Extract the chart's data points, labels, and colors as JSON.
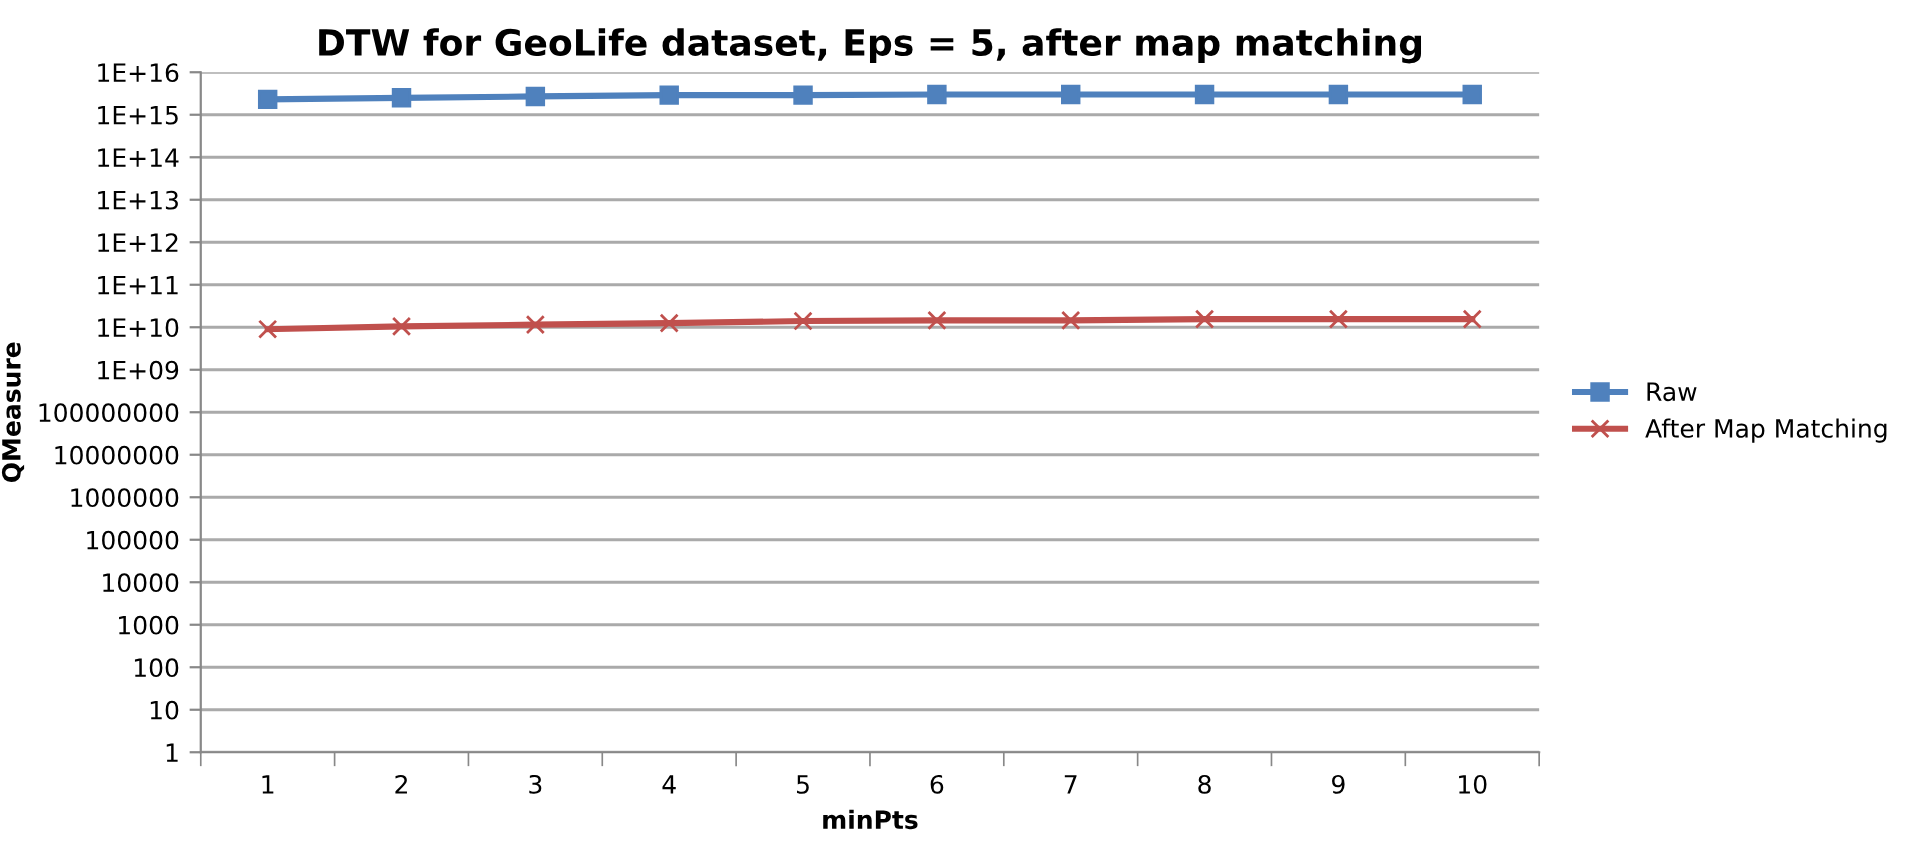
{
  "chart_data": {
    "type": "line",
    "title": "DTW for GeoLife dataset, Eps = 5, after map matching",
    "xlabel": "minPts",
    "ylabel": "QMeasure",
    "categories": [
      "1",
      "2",
      "3",
      "4",
      "5",
      "6",
      "7",
      "8",
      "9",
      "10"
    ],
    "series": [
      {
        "name": "Raw",
        "color": "#4f81bd",
        "marker": "square",
        "values": [
          2300000000000000.0,
          2500000000000000.0,
          2700000000000000.0,
          2900000000000000.0,
          2900000000000000.0,
          3000000000000000.0,
          3000000000000000.0,
          3000000000000000.0,
          3000000000000000.0,
          3000000000000000.0
        ]
      },
      {
        "name": "After Map Matching",
        "color": "#c0504d",
        "marker": "cross",
        "values": [
          9000000000.0,
          10500000000.0,
          11500000000.0,
          12500000000.0,
          14000000000.0,
          14500000000.0,
          14500000000.0,
          15500000000.0,
          15500000000.0,
          15500000000.0
        ]
      }
    ],
    "log": "y",
    "ylim": [
      1,
      1e+16
    ],
    "yticks": [
      1,
      10,
      100,
      1000,
      10000,
      100000,
      1000000,
      10000000,
      100000000,
      {
        "value": 1000000000.0,
        "label": "1E+09"
      },
      {
        "value": 10000000000.0,
        "label": "1E+10"
      },
      {
        "value": 100000000000.0,
        "label": "1E+11"
      },
      {
        "value": 1000000000000.0,
        "label": "1E+12"
      },
      {
        "value": 10000000000000.0,
        "label": "1E+13"
      },
      {
        "value": 100000000000000.0,
        "label": "1E+14"
      },
      {
        "value": 1000000000000000.0,
        "label": "1E+15"
      },
      {
        "value": 1e+16,
        "label": "1E+16"
      }
    ],
    "grid": "y",
    "legend": "right"
  }
}
